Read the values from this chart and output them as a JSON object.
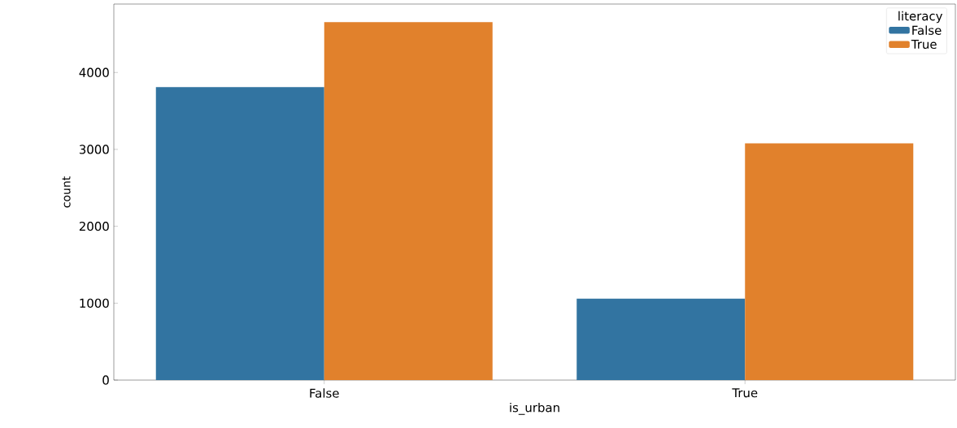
{
  "chart_data": {
    "type": "bar",
    "xlabel": "is_urban",
    "ylabel": "count",
    "legend_title": "literacy",
    "categories": [
      "False",
      "True"
    ],
    "series": [
      {
        "name": "False",
        "color": "#3274a1",
        "values": [
          3810,
          1060
        ]
      },
      {
        "name": "True",
        "color": "#e1812c",
        "values": [
          4655,
          3080
        ]
      }
    ],
    "ylim": [
      0,
      4890
    ],
    "yticks": [
      0,
      1000,
      2000,
      3000,
      4000
    ],
    "legend": "top right",
    "grid": false
  }
}
